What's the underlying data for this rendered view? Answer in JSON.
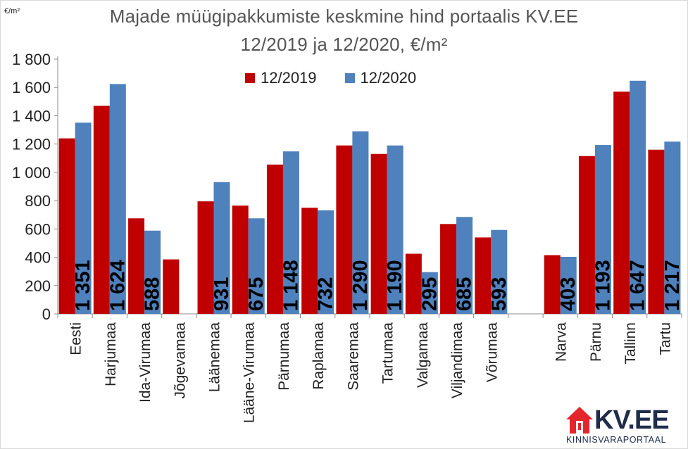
{
  "header": {
    "unit": "€/m²",
    "title_line1": "Majade müügipakkumiste keskmine hind portaalis KV.EE",
    "title_line2": "12/2019 ja 12/2020, €/m²"
  },
  "legend": [
    {
      "label": "12/2019",
      "color": "#c00000"
    },
    {
      "label": "12/2020",
      "color": "#4f81bd"
    }
  ],
  "logo": {
    "text": "KV.EE",
    "subtitle": "KINNISVARAPORTAAL",
    "color": "#e4262c"
  },
  "chart_data": {
    "type": "bar",
    "title": "Majade müügipakkumiste keskmine hind portaalis KV.EE 12/2019 ja 12/2020, €/m²",
    "ylabel": "€/m²",
    "xlabel": "",
    "ylim": [
      0,
      1800
    ],
    "yticks": [
      0,
      200,
      400,
      600,
      800,
      1000,
      1200,
      1400,
      1600,
      1800
    ],
    "ytick_labels": [
      "0",
      "200",
      "400",
      "600",
      "800",
      "1 000",
      "1 200",
      "1 400",
      "1 600",
      "1 800"
    ],
    "grid": false,
    "legend_position": "top-center",
    "categories": [
      "Eesti",
      "Harjumaa",
      "Ida-Virumaa",
      "Jõgevamaa",
      "Läänemaa",
      "Lääne-Virumaa",
      "Pärnumaa",
      "Raplamaa",
      "Saaremaa",
      "Tartumaa",
      "Valgamaa",
      "Viljandimaa",
      "Võrumaa",
      "",
      "Narva",
      "Pärnu",
      "Tallinn",
      "Tartu"
    ],
    "series": [
      {
        "name": "12/2019",
        "color": "#c00000",
        "values": [
          1240,
          1470,
          675,
          385,
          795,
          765,
          1055,
          750,
          1190,
          1130,
          425,
          635,
          540,
          null,
          415,
          1115,
          1570,
          1160
        ]
      },
      {
        "name": "12/2020",
        "color": "#4f81bd",
        "values": [
          1351,
          1624,
          588,
          null,
          931,
          675,
          1148,
          732,
          1290,
          1190,
          295,
          685,
          593,
          null,
          403,
          1193,
          1647,
          1217
        ],
        "data_labels": [
          "1 351",
          "1 624",
          "588",
          "",
          "931",
          "675",
          "1 148",
          "732",
          "1 290",
          "1 190",
          "295",
          "685",
          "593",
          "",
          "403",
          "1 193",
          "1 647",
          "1 217"
        ]
      }
    ]
  }
}
